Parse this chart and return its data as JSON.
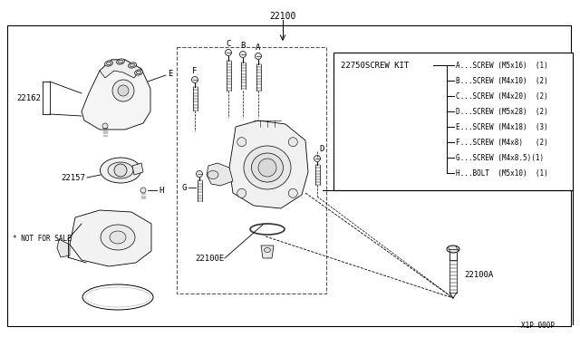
{
  "bg_color": "#ffffff",
  "lc": "#000000",
  "title_part": "22100",
  "part_22100A": "22100A",
  "part_22100E": "22100E",
  "part_22162": "22162",
  "part_22157": "22157",
  "not_for_sale": "* NOT FOR SALE",
  "screw_kit_label": "22750SCREW KIT",
  "screw_items": [
    "A...SCREW (M5x16)  (1)",
    "B...SCREW (M4x10)  (2)",
    "C...SCREW (M4x20)  (2)",
    "D...SCREW (M5x28)  (2)",
    "E...SCREW (M4x18)  (3)",
    "F...SCREW (M4x8)   (2)",
    "G...SCREW (M4x8.5)(1)",
    "H...BOLT  (M5x10)  (1)"
  ],
  "diagram_code": "X1P 000P",
  "fs": 6.0,
  "fm": 7.0,
  "fl": 6.5
}
